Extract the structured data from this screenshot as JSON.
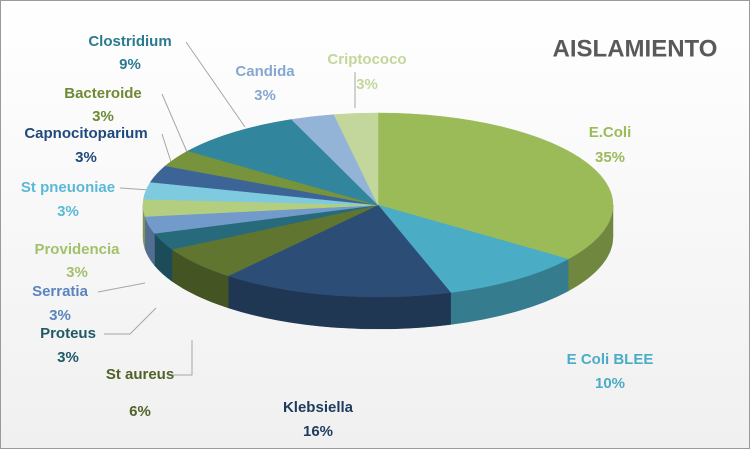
{
  "chart_data": {
    "type": "pie3d",
    "title": "AISLAMIENTO",
    "categories": [
      "E.Coli",
      "E Coli BLEE",
      "Klebsiella",
      "St aureus",
      "Proteus",
      "Serratia",
      "Providencia",
      "St pneuoniae",
      "Capnocitoparium",
      "Bacteroide",
      "Clostridium",
      "Candida",
      "Criptococo"
    ],
    "values": [
      35,
      10,
      16,
      6,
      3,
      3,
      3,
      3,
      3,
      3,
      9,
      3,
      3
    ],
    "value_labels": [
      "35%",
      "10%",
      "16%",
      "6%",
      "3%",
      "3%",
      "3%",
      "3%",
      "3%",
      "3%",
      "9%",
      "3%",
      "3%"
    ],
    "colors": [
      "#9bbb59",
      "#4bacc6",
      "#2c4d75",
      "#5f7530",
      "#276a7c",
      "#729aca",
      "#b3ce7f",
      "#7ecbe0",
      "#3c6496",
      "#77933c",
      "#31859c",
      "#93b3d7",
      "#c3d69b"
    ]
  }
}
